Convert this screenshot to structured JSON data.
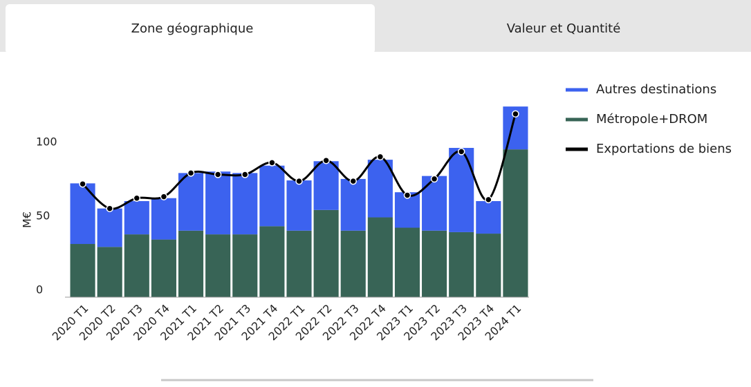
{
  "tabs": [
    "Zone géographique",
    "Valeur et Quantité"
  ],
  "chart_data": {
    "type": "stacked-bar-line",
    "y_label": "M€",
    "categories": [
      "2020 T1",
      "2020 T2",
      "2020 T3",
      "2020 T4",
      "2021 T1",
      "2021 T2",
      "2021 T3",
      "2021 T4",
      "2022 T1",
      "2022 T2",
      "2022 T3",
      "2022 T4",
      "2023 T1",
      "2023 T2",
      "2023 T3",
      "2023 T4",
      "2024 T1"
    ],
    "series": [
      {
        "name": "Métropole+DROM",
        "color": "#386456",
        "kind": "bar",
        "values": [
          36,
          34,
          42.5,
          39,
          45,
          42.5,
          42.5,
          48,
          45,
          59,
          45,
          54,
          47,
          45,
          44,
          43,
          100
        ]
      },
      {
        "name": "Autres destinations",
        "color": "#3c62ef",
        "kind": "bar",
        "values": [
          41,
          26,
          22.5,
          28,
          39,
          42.5,
          41.5,
          41,
          34,
          33,
          35,
          39,
          24,
          37,
          57,
          22,
          29
        ]
      },
      {
        "name": "Exportations de biens",
        "color": "#000000",
        "kind": "line",
        "values": [
          76.6,
          60,
          67,
          68,
          84,
          83,
          83,
          91,
          78.5,
          92.5,
          78.5,
          95,
          69,
          80,
          98.5,
          66,
          124
        ]
      }
    ],
    "legend_order": [
      1,
      0,
      2
    ],
    "ylim": [
      0,
      130
    ],
    "yticks": [
      0,
      50,
      100
    ],
    "grid": false
  }
}
